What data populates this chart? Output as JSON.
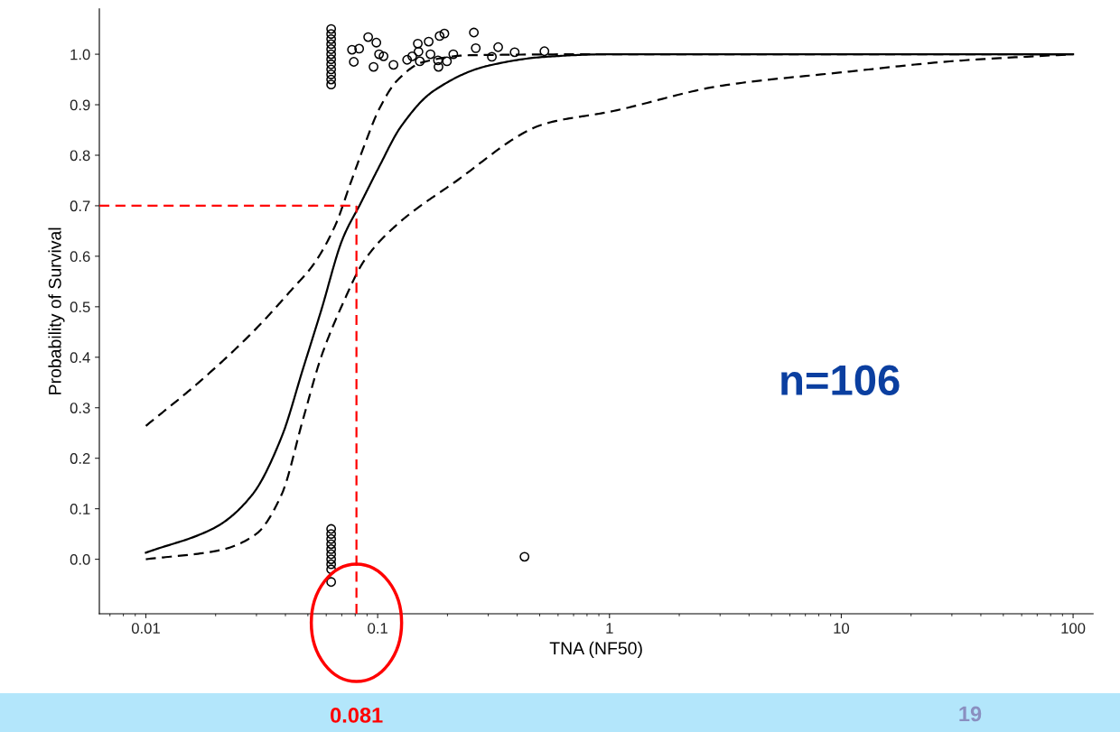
{
  "chart_data": {
    "type": "scatter",
    "xlabel": "TNA (NF50)",
    "ylabel": "Probability of Survival",
    "log": "x",
    "xlim": [
      0.0063,
      122
    ],
    "xticks": [
      0.01,
      0.1,
      1,
      10,
      100
    ],
    "ylim": [
      -0.108,
      1.09
    ],
    "yticks": [
      {
        "value": 0,
        "label": "0.0"
      },
      0.1,
      0.2,
      0.3,
      0.4,
      0.5,
      0.6,
      0.7,
      0.8,
      0.9,
      {
        "value": 1,
        "label": "1.0"
      }
    ],
    "grid": false,
    "series": [
      {
        "color": "#000000",
        "marker": "circle",
        "x": [
          0.063,
          0.063,
          0.063,
          0.063,
          0.063,
          0.063,
          0.063,
          0.063,
          0.063,
          0.063,
          0.063,
          0.063,
          0.063,
          0.063,
          0.063,
          0.063,
          0.063,
          0.063,
          0.063,
          0.063,
          0.063,
          0.063,
          0.43,
          0.0775,
          0.0832,
          0.0789,
          0.091,
          0.0987,
          0.096,
          0.1014,
          0.106,
          0.117,
          0.134,
          0.141,
          0.149,
          0.15,
          0.152,
          0.166,
          0.169,
          0.185,
          0.194,
          0.182,
          0.183,
          0.199,
          0.212,
          0.26,
          0.265,
          0.331,
          0.311,
          0.39,
          0.524
        ],
        "values": [
          1.05,
          1.04,
          1.03,
          1.02,
          1.01,
          1.0,
          0.99,
          0.98,
          0.97,
          0.96,
          0.95,
          0.94,
          0.06,
          0.05,
          0.04,
          0.03,
          0.02,
          0.01,
          0.0,
          -0.01,
          -0.02,
          -0.045,
          0.005,
          1.009,
          1.011,
          0.985,
          1.034,
          1.023,
          0.975,
          1.0,
          0.996,
          0.979,
          0.989,
          0.996,
          1.021,
          1.005,
          0.986,
          1.025,
          1.0,
          1.036,
          1.041,
          0.988,
          0.975,
          0.986,
          1.0,
          1.043,
          1.012,
          1.014,
          0.995,
          1.004,
          1.006
        ]
      },
      {
        "type": "line",
        "color": "#000000",
        "line_style": "solid",
        "x": [
          0.01,
          0.0201,
          0.0288,
          0.0385,
          0.0477,
          0.057,
          0.0707,
          0.0847,
          0.1014,
          0.1257,
          0.1738,
          0.298,
          0.533,
          1,
          100
        ],
        "values": [
          0.013,
          0.064,
          0.128,
          0.242,
          0.378,
          0.492,
          0.635,
          0.706,
          0.777,
          0.856,
          0.927,
          0.977,
          0.995,
          1.0,
          1.0
        ]
      },
      {
        "type": "line",
        "color": "#000000",
        "line_style": "dashed",
        "x": [
          0.01,
          0.0209,
          0.0299,
          0.0385,
          0.0477,
          0.057,
          0.0707,
          0.0877,
          0.1214,
          0.208,
          0.533,
          1,
          3.07,
          10,
          31.7,
          100
        ],
        "values": [
          0.0,
          0.018,
          0.05,
          0.128,
          0.278,
          0.4,
          0.506,
          0.592,
          0.663,
          0.742,
          0.863,
          0.886,
          0.938,
          0.964,
          0.987,
          1.0
        ]
      },
      {
        "type": "line",
        "color": "#000000",
        "line_style": "dashed",
        "x": [
          0.01,
          0.0168,
          0.0288,
          0.0428,
          0.0531,
          0.0659,
          0.076,
          0.0877,
          0.1014,
          0.1214,
          0.156,
          0.249,
          1,
          100
        ],
        "values": [
          0.264,
          0.349,
          0.449,
          0.535,
          0.585,
          0.663,
          0.742,
          0.82,
          0.891,
          0.948,
          0.984,
          0.998,
          1.0,
          1.0
        ]
      }
    ],
    "ref_lines": [
      {
        "axis": "x",
        "value": 0.081,
        "label": "0.081",
        "color": "#ff0000",
        "line_style": "dashed"
      },
      {
        "axis": "y",
        "value": 0.7,
        "color": "#ff0000",
        "line_style": "dashed"
      }
    ],
    "annotations": [
      "n=106",
      "19"
    ]
  }
}
